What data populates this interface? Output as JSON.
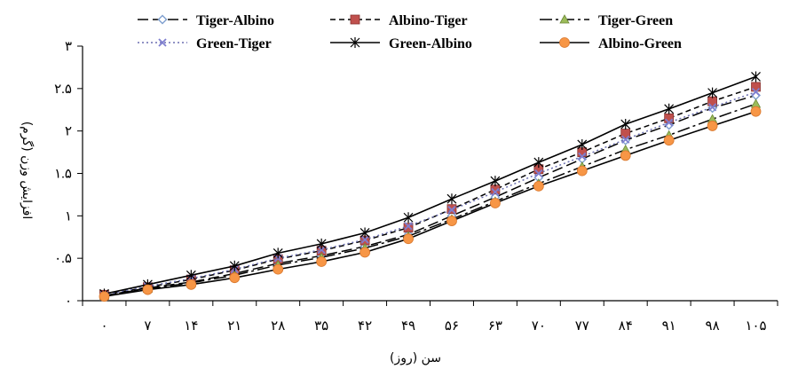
{
  "chart_data": {
    "type": "line",
    "xlabel": "سن (روز)",
    "ylabel": "افزایش وزن (گرم)",
    "categories": [
      "۰",
      "۷",
      "۱۴",
      "۲۱",
      "۲۸",
      "۳۵",
      "۴۲",
      "۴۹",
      "۵۶",
      "۶۳",
      "۷۰",
      "۷۷",
      "۸۴",
      "۹۱",
      "۹۸",
      "۱۰۵"
    ],
    "x": [
      0,
      7,
      14,
      21,
      28,
      35,
      42,
      49,
      56,
      63,
      70,
      77,
      84,
      91,
      98,
      105
    ],
    "ylim": [
      0,
      3
    ],
    "yticks": [
      0,
      0.5,
      1,
      1.5,
      2,
      2.5,
      3
    ],
    "ytick_labels": [
      "۰",
      "۰.۵",
      "۱",
      "۱.۵",
      "۲",
      "۲.۵",
      "۳"
    ],
    "grid": false,
    "legend_position": "top",
    "series": [
      {
        "name": "Tiger-Albino",
        "marker": "diamond-open",
        "dash": "long-dash",
        "color": "#000000",
        "marker_color": "#7f9fcf",
        "values": [
          0.06,
          0.15,
          0.22,
          0.32,
          0.44,
          0.53,
          0.64,
          0.78,
          1.0,
          1.22,
          1.45,
          1.67,
          1.89,
          2.07,
          2.27,
          2.42
        ]
      },
      {
        "name": "Albino-Tiger",
        "marker": "square",
        "dash": "short-dash",
        "color": "#000000",
        "marker_color": "#c0504d",
        "values": [
          0.07,
          0.16,
          0.25,
          0.36,
          0.49,
          0.59,
          0.71,
          0.86,
          1.08,
          1.31,
          1.55,
          1.75,
          1.97,
          2.15,
          2.35,
          2.52
        ]
      },
      {
        "name": "Tiger-Green",
        "marker": "triangle",
        "dash": "dash-dot",
        "color": "#000000",
        "marker_color": "#9bbb59",
        "values": [
          0.06,
          0.14,
          0.21,
          0.3,
          0.42,
          0.51,
          0.62,
          0.76,
          0.96,
          1.17,
          1.38,
          1.58,
          1.78,
          1.95,
          2.14,
          2.32
        ]
      },
      {
        "name": "Green-Tiger",
        "marker": "x-open",
        "dash": "dotted",
        "color": "#6b6fb0",
        "marker_color": "#7f7fd0",
        "values": [
          0.07,
          0.17,
          0.26,
          0.37,
          0.5,
          0.6,
          0.72,
          0.88,
          1.07,
          1.28,
          1.5,
          1.7,
          1.9,
          2.1,
          2.28,
          2.46
        ]
      },
      {
        "name": "Green-Albino",
        "marker": "star",
        "dash": "solid",
        "color": "#000000",
        "marker_color": "#000000",
        "values": [
          0.08,
          0.19,
          0.3,
          0.41,
          0.56,
          0.67,
          0.8,
          0.98,
          1.2,
          1.41,
          1.63,
          1.84,
          2.08,
          2.26,
          2.45,
          2.64
        ]
      },
      {
        "name": "Albino-Green",
        "marker": "circle",
        "dash": "solid",
        "color": "#000000",
        "marker_color": "#f79646",
        "values": [
          0.05,
          0.13,
          0.19,
          0.27,
          0.37,
          0.46,
          0.57,
          0.73,
          0.94,
          1.15,
          1.35,
          1.53,
          1.71,
          1.89,
          2.06,
          2.23
        ]
      }
    ]
  }
}
